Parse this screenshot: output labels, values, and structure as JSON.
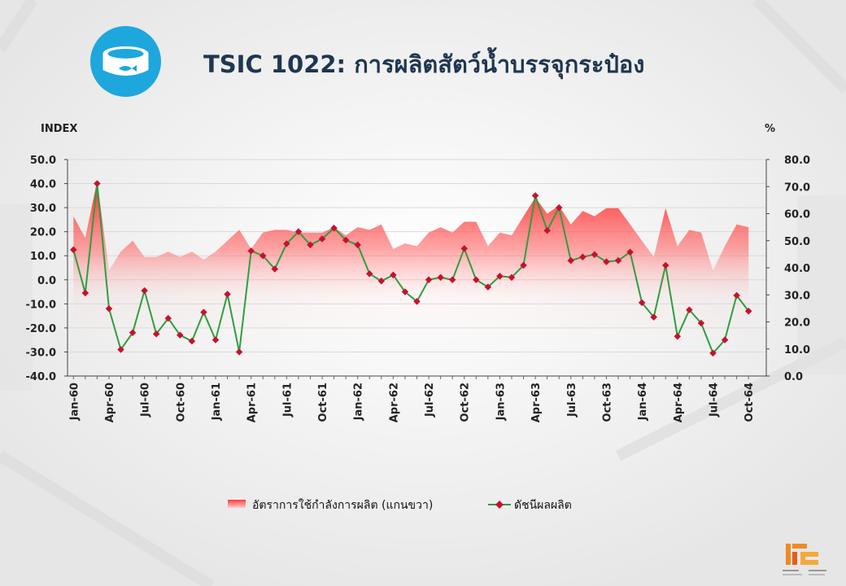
{
  "page": {
    "title": "TSIC 1022: การผลิตสัตว์น้ำบรรจุกระป๋อง",
    "icon": "canned-fish-icon",
    "left_unit": "INDEX",
    "right_unit": "%",
    "legend": {
      "area_label": "อัตราการใช้กำลังการผลิต (แกนขวา)",
      "line_label": "ดัชนีผลผลิต"
    },
    "logo_name": "oie-logo"
  },
  "chart_data": {
    "type": "line",
    "title": "TSIC 1022: การผลิตสัตว์น้ำบรรจุกระป๋อง",
    "x": [
      "Jan-60",
      "Feb-60",
      "Mar-60",
      "Apr-60",
      "May-60",
      "Jun-60",
      "Jul-60",
      "Aug-60",
      "Sep-60",
      "Oct-60",
      "Nov-60",
      "Dec-60",
      "Jan-61",
      "Feb-61",
      "Mar-61",
      "Apr-61",
      "May-61",
      "Jun-61",
      "Jul-61",
      "Aug-61",
      "Sep-61",
      "Oct-61",
      "Nov-61",
      "Dec-61",
      "Jan-62",
      "Feb-62",
      "Mar-62",
      "Apr-62",
      "May-62",
      "Jun-62",
      "Jul-62",
      "Aug-62",
      "Sep-62",
      "Oct-62",
      "Nov-62",
      "Dec-62",
      "Jan-63",
      "Feb-63",
      "Mar-63",
      "Apr-63",
      "May-63",
      "Jun-63",
      "Jul-63",
      "Aug-63",
      "Sep-63",
      "Oct-63",
      "Nov-63",
      "Dec-63",
      "Jan-64",
      "Feb-64",
      "Mar-64",
      "Apr-64",
      "May-64",
      "Jun-64",
      "Jul-64",
      "Aug-64",
      "Sep-64",
      "Oct-64"
    ],
    "x_tick_labels": [
      "Jan-60",
      "Apr-60",
      "Jul-60",
      "Oct-60",
      "Jan-61",
      "Apr-61",
      "Jul-61",
      "Oct-61",
      "Jan-62",
      "Apr-62",
      "Jul-62",
      "Oct-62",
      "Jan-63",
      "Apr-63",
      "Jul-63",
      "Oct-63",
      "Jan-64",
      "Apr-64",
      "Jul-64",
      "Oct-64"
    ],
    "series": [
      {
        "name": "ดัชนีผลผลิต",
        "axis": "left",
        "type": "line",
        "color": "#2e9e3e",
        "marker_color": "#c8102e",
        "values": [
          12.5,
          -5.5,
          40.0,
          -12.0,
          -29.0,
          -22.0,
          -4.5,
          -22.5,
          -16.0,
          -23.0,
          -25.5,
          -13.5,
          -25.0,
          -6.0,
          -30.0,
          12.0,
          10.0,
          4.5,
          15.0,
          20.0,
          14.5,
          17.0,
          21.5,
          16.5,
          14.5,
          2.5,
          -0.5,
          2.0,
          -5.0,
          -9.0,
          0.0,
          1.0,
          0.0,
          13.0,
          0.0,
          -3.0,
          1.5,
          1.0,
          6.0,
          35.0,
          20.5,
          30.0,
          8.0,
          9.5,
          10.5,
          7.5,
          8.0,
          11.5,
          -9.5,
          -15.5,
          6.0,
          -23.5,
          -12.5,
          -18.0,
          -30.5,
          -25.0,
          -6.5,
          -13.0
        ]
      },
      {
        "name": "อัตราการใช้กำลังการผลิต (แกนขวา)",
        "axis": "right",
        "type": "area",
        "color": "#ff3b3b",
        "values": [
          59,
          51,
          72,
          39,
          46,
          50,
          44,
          44,
          46,
          44,
          46,
          43,
          46,
          50,
          54,
          47,
          53,
          54,
          54,
          53,
          53,
          53,
          55,
          52,
          55,
          54,
          56,
          47,
          49,
          48,
          53,
          55,
          53,
          57,
          57,
          48,
          53,
          52,
          59,
          66,
          60,
          63,
          56,
          61,
          59,
          62,
          62,
          56,
          50,
          44,
          62,
          48,
          54,
          53,
          39,
          48,
          56,
          55
        ]
      }
    ],
    "y_left": {
      "label": "INDEX",
      "range": [
        -40,
        50
      ],
      "ticks": [
        "-40.0",
        "-30.0",
        "-20.0",
        "-10.0",
        "0.0",
        "10.0",
        "20.0",
        "30.0",
        "40.0",
        "50.0"
      ]
    },
    "y_right": {
      "label": "%",
      "range": [
        0,
        80
      ],
      "ticks": [
        "0.0",
        "10.0",
        "20.0",
        "30.0",
        "40.0",
        "50.0",
        "60.0",
        "70.0",
        "80.0"
      ]
    },
    "grid": "horizontal",
    "legend_position": "bottom"
  }
}
